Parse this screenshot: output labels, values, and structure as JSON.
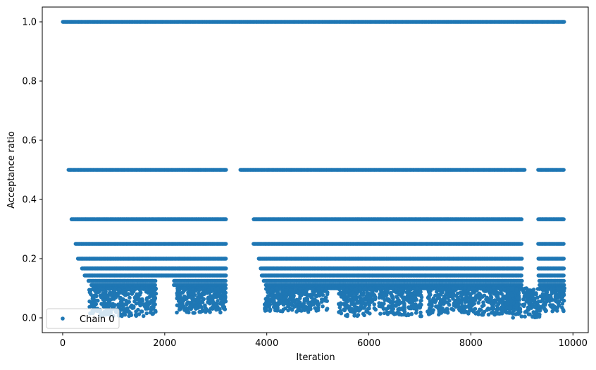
{
  "chart_data": {
    "type": "scatter",
    "xlabel": "Iteration",
    "ylabel": "Acceptance ratio",
    "xlim": [
      -400,
      10300
    ],
    "ylim": [
      -0.05,
      1.05
    ],
    "x_ticks": [
      0,
      2000,
      4000,
      6000,
      8000,
      10000
    ],
    "x_tick_labels": [
      "0",
      "2000",
      "4000",
      "6000",
      "8000",
      "10000"
    ],
    "y_ticks": [
      0.0,
      0.2,
      0.4,
      0.6,
      0.8,
      1.0
    ],
    "y_tick_labels": [
      "0.0",
      "0.2",
      "0.4",
      "0.6",
      "0.8",
      "1.0"
    ],
    "grid": false,
    "legend": {
      "position": "lower-left",
      "entries": [
        "Chain 0"
      ]
    },
    "series": [
      {
        "name": "Chain 0",
        "color": "#1f77b4",
        "marker": "circle",
        "levels": [
          {
            "y": 1.0,
            "segments": [
              [
                0,
                9830
              ]
            ]
          },
          {
            "y": 0.5,
            "segments": [
              [
                110,
                3200
              ],
              [
                3480,
                9060
              ],
              [
                9320,
                9830
              ]
            ]
          },
          {
            "y": 0.333,
            "segments": [
              [
                170,
                3200
              ],
              [
                3740,
                9000
              ],
              [
                9320,
                9830
              ]
            ]
          },
          {
            "y": 0.25,
            "segments": [
              [
                250,
                3200
              ],
              [
                3740,
                9000
              ],
              [
                9320,
                9830
              ]
            ]
          },
          {
            "y": 0.2,
            "segments": [
              [
                300,
                3200
              ],
              [
                3840,
                9000
              ],
              [
                9320,
                9830
              ]
            ]
          },
          {
            "y": 0.167,
            "segments": [
              [
                380,
                3200
              ],
              [
                3880,
                9000
              ],
              [
                9320,
                9830
              ]
            ]
          },
          {
            "y": 0.143,
            "segments": [
              [
                430,
                3200
              ],
              [
                3900,
                9000
              ],
              [
                9320,
                9830
              ]
            ]
          },
          {
            "y": 0.125,
            "segments": [
              [
                500,
                1820
              ],
              [
                2180,
                3200
              ],
              [
                3940,
                9000
              ],
              [
                9340,
                9830
              ]
            ]
          },
          {
            "y": 0.111,
            "segments": [
              [
                560,
                1820
              ],
              [
                2180,
                3200
              ],
              [
                3980,
                9000
              ],
              [
                9340,
                9830
              ]
            ]
          },
          {
            "y": 0.1,
            "segments": [
              [
                600,
                1820
              ],
              [
                2250,
                3200
              ],
              [
                4000,
                9000
              ],
              [
                9350,
                9830
              ]
            ]
          }
        ],
        "clusters": [
          {
            "x_range": [
              520,
              1830
            ],
            "y_max": 0.1,
            "y_min": 0.005
          },
          {
            "x_range": [
              2230,
              3200
            ],
            "y_max": 0.1,
            "y_min": 0.015
          },
          {
            "x_range": [
              3950,
              5200
            ],
            "y_max": 0.1,
            "y_min": 0.02
          },
          {
            "x_range": [
              5400,
              6150
            ],
            "y_max": 0.1,
            "y_min": 0.005
          },
          {
            "x_range": [
              6200,
              7040
            ],
            "y_max": 0.1,
            "y_min": 0.005
          },
          {
            "x_range": [
              7150,
              8950
            ],
            "y_max": 0.1,
            "y_min": 0.01
          },
          {
            "x_range": [
              8700,
              9380
            ],
            "y_max": 0.1,
            "y_min": 0.0
          },
          {
            "x_range": [
              9400,
              9830
            ],
            "y_max": 0.1,
            "y_min": 0.02
          }
        ]
      }
    ]
  }
}
